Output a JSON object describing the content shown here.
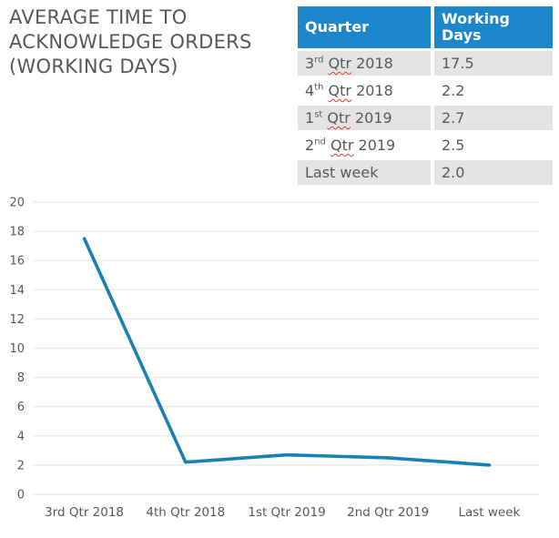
{
  "title": {
    "lines": [
      "AVERAGE TIME TO",
      "ACKNOWLEDGE ORDERS",
      "(WORKING DAYS)"
    ]
  },
  "table": {
    "headers": [
      "Quarter",
      "Working Days"
    ],
    "rows": [
      {
        "quarter_num": "3",
        "quarter_sup": "rd",
        "quarter_word": "Qtr",
        "quarter_year": "2018",
        "working_days": "17.5",
        "shaded": true,
        "misspelled": true
      },
      {
        "quarter_num": "4",
        "quarter_sup": "th",
        "quarter_word": "Qtr",
        "quarter_year": "2018",
        "working_days": "2.2",
        "shaded": false,
        "misspelled": true
      },
      {
        "quarter_num": "1",
        "quarter_sup": "st",
        "quarter_word": "Qtr",
        "quarter_year": "2019",
        "working_days": "2.7",
        "shaded": true,
        "misspelled": true
      },
      {
        "quarter_num": "2",
        "quarter_sup": "nd",
        "quarter_word": "Qtr",
        "quarter_year": "2019",
        "working_days": "2.5",
        "shaded": false,
        "misspelled": true
      },
      {
        "label": "Last week",
        "working_days": "2.0",
        "shaded": true,
        "misspelled": false
      }
    ]
  },
  "chart_data": {
    "type": "line",
    "categories": [
      "3rd Qtr 2018",
      "4th Qtr 2018",
      "1st Qtr 2019",
      "2nd Qtr 2019",
      "Last week"
    ],
    "values": [
      17.5,
      2.2,
      2.7,
      2.5,
      2.0
    ],
    "title": "",
    "xlabel": "",
    "ylabel": "",
    "ylim": [
      0,
      20
    ],
    "ytick_step": 2,
    "grid": true,
    "legend": "none"
  },
  "colors": {
    "header_blue": "#1b86c9",
    "line_blue": "#1780b4",
    "row_shade": "#e4e4e4",
    "text_gray": "#595959",
    "title_gray": "#54575c",
    "gridline_gray": "#e7e7e7",
    "misspell_red": "#dd3b2a"
  }
}
